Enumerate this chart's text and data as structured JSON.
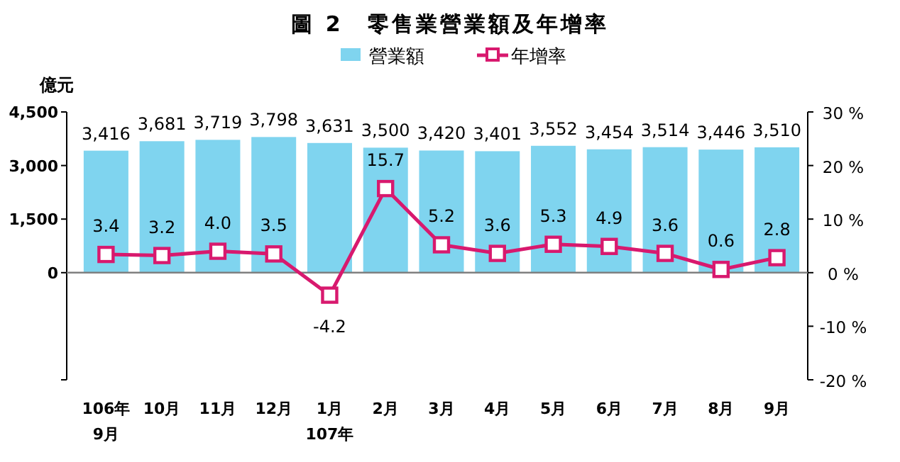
{
  "chart_data": {
    "type": "bar",
    "title": "圖 2　零售業營業額及年增率",
    "ylabel": "億元",
    "categories": [
      "106年\n9月",
      "10月",
      "11月",
      "12月",
      "1月\n107年",
      "2月",
      "3月",
      "4月",
      "5月",
      "6月",
      "7月",
      "8月",
      "9月"
    ],
    "series": [
      {
        "name": "營業額",
        "color": "#7fd4ef",
        "values": [
          3416,
          3681,
          3719,
          3798,
          3631,
          3500,
          3420,
          3401,
          3552,
          3454,
          3514,
          3446,
          3510
        ],
        "value_labels": [
          "3,416",
          "3,681",
          "3,719",
          "3,798",
          "3,631",
          "3,500",
          "3,420",
          "3,401",
          "3,552",
          "3,454",
          "3,514",
          "3,446",
          "3,510"
        ]
      },
      {
        "name": "年增率",
        "type": "line",
        "axis": "y2",
        "color": "#d8196e",
        "marker": "square",
        "values": [
          3.4,
          3.2,
          4.0,
          3.5,
          -4.2,
          15.7,
          5.2,
          3.6,
          5.3,
          4.9,
          3.6,
          0.6,
          2.8
        ],
        "value_labels": [
          "3.4",
          "3.2",
          "4.0",
          "3.5",
          "-4.2",
          "15.7",
          "5.2",
          "3.6",
          "5.3",
          "4.9",
          "3.6",
          "0.6",
          "2.8"
        ]
      }
    ],
    "ylim": [
      -3000,
      4500
    ],
    "yticks": [
      {
        "value": -3000,
        "label": null
      },
      {
        "value": 0,
        "label": "0"
      },
      {
        "value": 1500,
        "label": "1,500"
      },
      {
        "value": 3000,
        "label": "3,000"
      },
      {
        "value": 4500,
        "label": "4,500"
      }
    ],
    "y2lim": [
      -20,
      30
    ],
    "y2ticks": [
      {
        "value": -20,
        "label": "-20 %"
      },
      {
        "value": -10,
        "label": "-10 %"
      },
      {
        "value": 0,
        "label": "0 %"
      },
      {
        "value": 10,
        "label": "10 %"
      },
      {
        "value": 20,
        "label": "20 %"
      },
      {
        "value": 30,
        "label": "30 %"
      }
    ],
    "legend": "top"
  }
}
